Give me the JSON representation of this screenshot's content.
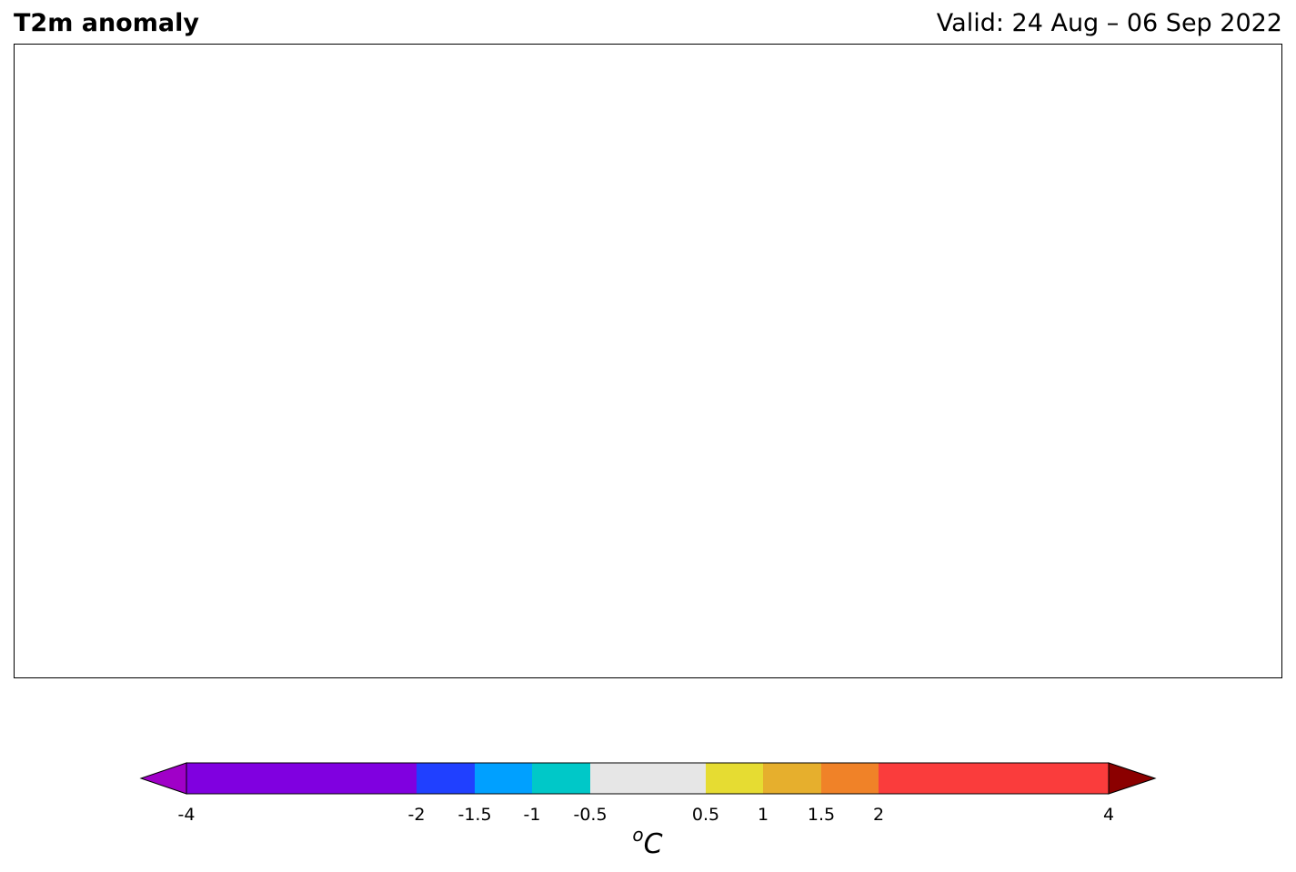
{
  "header": {
    "title": "T2m anomaly",
    "valid": "Valid: 24 Aug – 06 Sep 2022"
  },
  "colorbar": {
    "ticks": [
      "-4",
      "-2",
      "-1.5",
      "-1",
      "-0.5",
      "0.5",
      "1",
      "1.5",
      "2",
      "4"
    ],
    "unit_base": "C",
    "unit_super": "o",
    "bins": [
      {
        "from": -4,
        "to": -2,
        "color": "#8000e0"
      },
      {
        "from": -2,
        "to": -1.5,
        "color": "#2040ff"
      },
      {
        "from": -1.5,
        "to": -1,
        "color": "#00a0ff"
      },
      {
        "from": -1,
        "to": -0.5,
        "color": "#00c8c8"
      },
      {
        "from": -0.5,
        "to": 0.5,
        "color": "#e6e6e6"
      },
      {
        "from": 0.5,
        "to": 1,
        "color": "#e6dc32"
      },
      {
        "from": 1,
        "to": 1.5,
        "color": "#e6af2d"
      },
      {
        "from": 1.5,
        "to": 2,
        "color": "#f08228"
      },
      {
        "from": 2,
        "to": 4,
        "color": "#fa3c3c"
      }
    ],
    "under_color": "#a000c8",
    "over_color": "#8b0000"
  },
  "legend_colors": {
    "neutral": "#e6e6e6",
    "warm1": "#e6dc32",
    "warm2": "#e6af2d",
    "warm3": "#f08228",
    "warm4": "#fa3c3c",
    "extreme_warm": "#8b0000",
    "cool1": "#00c8c8",
    "cool2": "#00a0ff",
    "cool3": "#2040ff",
    "cool4": "#8000e0",
    "extreme_cool": "#a000c8",
    "coastline": "#333333"
  }
}
